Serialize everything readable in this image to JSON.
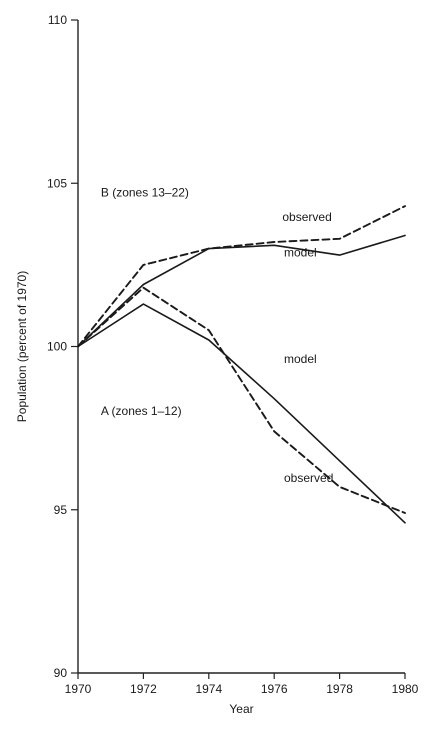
{
  "chart_data": {
    "type": "line",
    "title": "",
    "xlabel": "Year",
    "ylabel": "Population (percent of 1970)",
    "xlim": [
      1970,
      1980
    ],
    "ylim": [
      90,
      110
    ],
    "x_ticks": [
      1970,
      1972,
      1974,
      1976,
      1978,
      1980
    ],
    "y_ticks": [
      90,
      95,
      100,
      105,
      110
    ],
    "grid": false,
    "legend": "none",
    "series": [
      {
        "group": "B",
        "kind": "observed",
        "style": "dashed",
        "x": [
          1970,
          1972,
          1974,
          1976,
          1978,
          1980
        ],
        "y": [
          100,
          102.5,
          103.0,
          103.2,
          103.3,
          104.3
        ]
      },
      {
        "group": "B",
        "kind": "model",
        "style": "solid",
        "x": [
          1970,
          1972,
          1974,
          1976,
          1978,
          1980
        ],
        "y": [
          100,
          101.9,
          103.0,
          103.1,
          102.8,
          103.4
        ]
      },
      {
        "group": "A",
        "kind": "observed",
        "style": "dashed",
        "x": [
          1970,
          1972,
          1974,
          1976,
          1978,
          1980
        ],
        "y": [
          100,
          101.8,
          100.5,
          97.4,
          95.7,
          94.9
        ]
      },
      {
        "group": "A",
        "kind": "model",
        "style": "solid",
        "x": [
          1970,
          1972,
          1974,
          1976,
          1978,
          1980
        ],
        "y": [
          100,
          101.3,
          100.2,
          98.4,
          96.5,
          94.6
        ]
      }
    ],
    "annotations": [
      {
        "id": "label-b-group",
        "text": "B (zones 13–22)",
        "x": 1970.7,
        "y": 104.6
      },
      {
        "id": "label-b-observed",
        "text": "observed",
        "x": 1976.25,
        "y": 103.85
      },
      {
        "id": "label-b-model",
        "text": "model",
        "x": 1976.3,
        "y": 102.75
      },
      {
        "id": "label-a-model",
        "text": "model",
        "x": 1976.3,
        "y": 99.5
      },
      {
        "id": "label-a-group",
        "text": "A (zones 1–12)",
        "x": 1970.7,
        "y": 97.9
      },
      {
        "id": "label-a-observed",
        "text": "observed",
        "x": 1976.3,
        "y": 95.85
      }
    ]
  }
}
